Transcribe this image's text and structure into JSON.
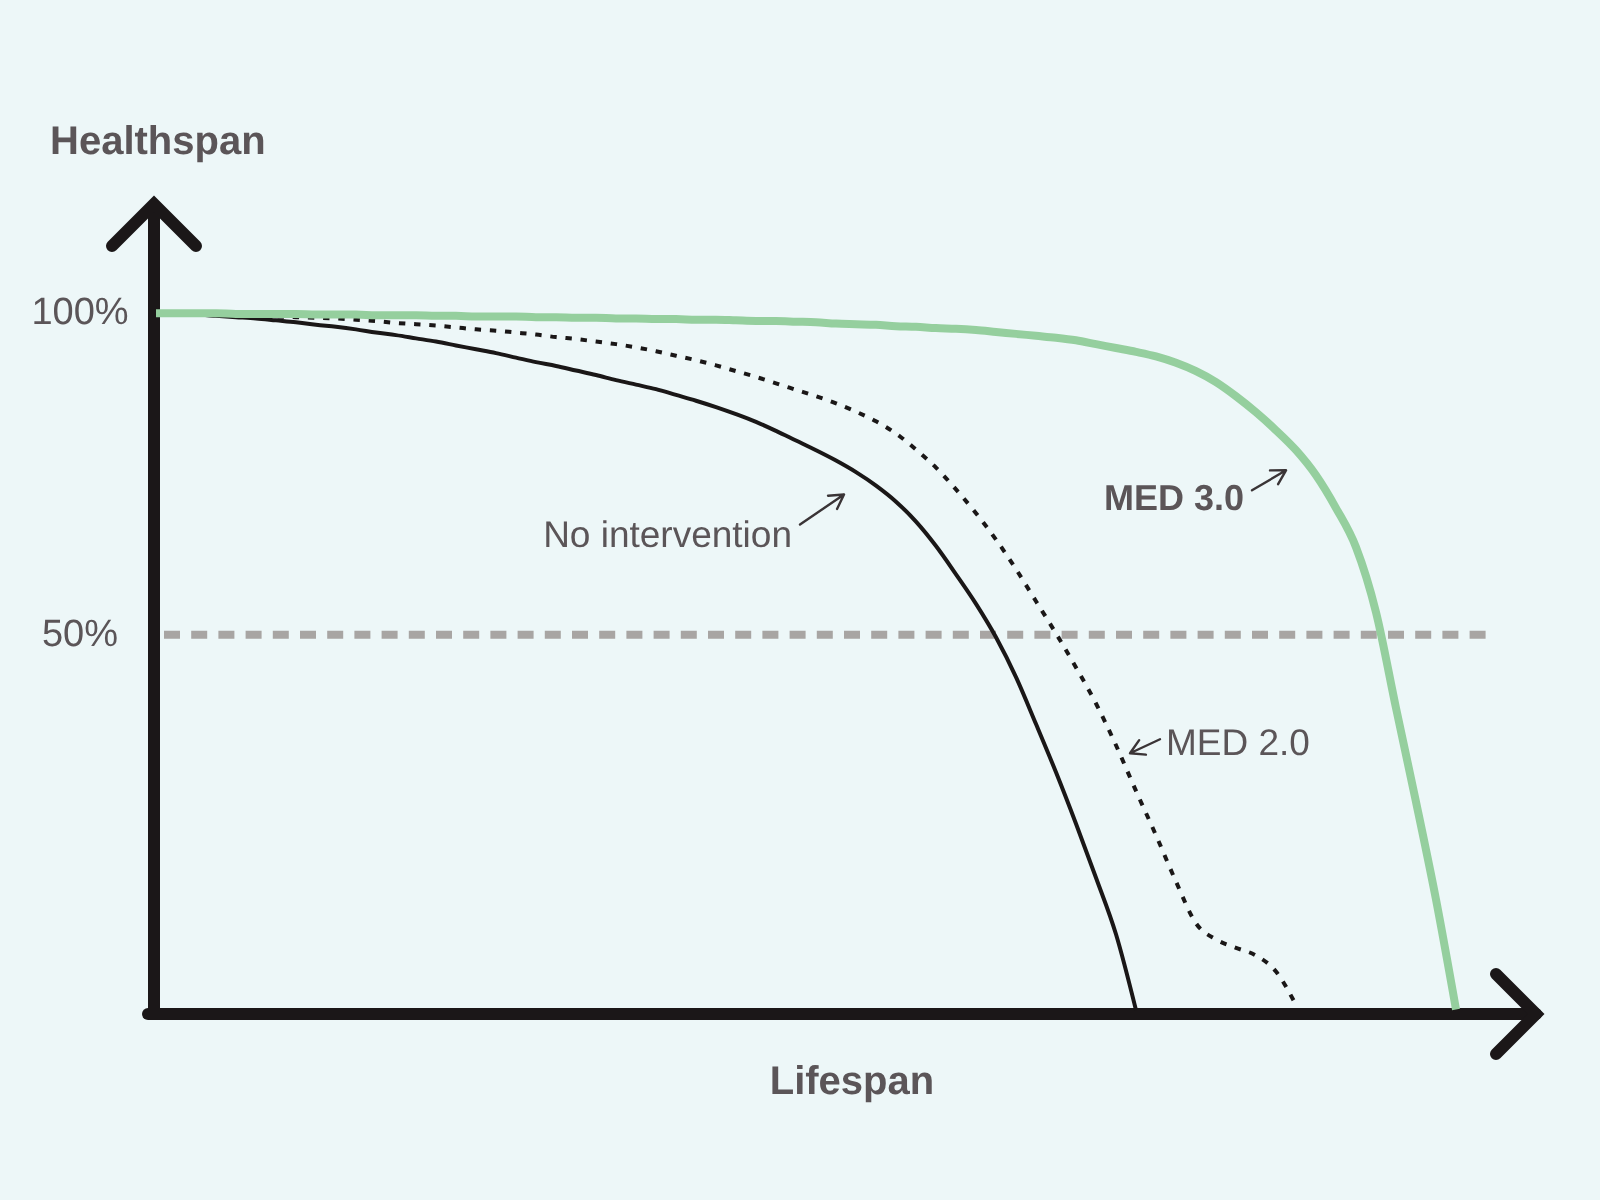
{
  "chart_data": {
    "type": "line",
    "xlabel": "Lifespan",
    "ylabel": "Healthspan",
    "categories": [
      null,
      null,
      null,
      null,
      null,
      null,
      null,
      null,
      null,
      null,
      null,
      null,
      null,
      null,
      null,
      null,
      null,
      null,
      null,
      null,
      null,
      null,
      null,
      null,
      null,
      null,
      null,
      null,
      null,
      null,
      null,
      null,
      null,
      null,
      null,
      null,
      null,
      null,
      null,
      null,
      null,
      null,
      null,
      null,
      null,
      null,
      null,
      null,
      null,
      null,
      null,
      null,
      null,
      null,
      null,
      null,
      null,
      null,
      null,
      null,
      null,
      null,
      null,
      null,
      null,
      null
    ],
    "ylim": [
      -9,
      117
    ],
    "yticks": [
      {
        "value": 100,
        "label": "100%"
      },
      {
        "value": 50,
        "label": "50%"
      }
    ],
    "tick_labels": "y",
    "ref_lines": [
      {
        "axis": "y",
        "value": 50,
        "color": "#a8a5a3",
        "line_style": "dashed"
      }
    ],
    "series": [
      {
        "name": "No intervention",
        "color": "#1a1717",
        "line_style": "solid",
        "values": [
          100,
          99.9,
          99.8,
          99.6,
          99.4,
          99.2,
          98.9,
          98.6,
          98.2,
          97.9,
          97.5,
          97.0,
          96.6,
          96.1,
          95.6,
          95.0,
          94.4,
          93.8,
          93.1,
          92.4,
          91.8,
          91.1,
          90.4,
          89.6,
          88.9,
          88.2,
          87.3,
          86.4,
          85.4,
          84.3,
          83.1,
          81.7,
          80.2,
          78.7,
          77.1,
          75.3,
          73.2,
          70.7,
          67.6,
          63.8,
          59.4,
          54.8,
          49.6,
          43.4,
          36.1,
          28.6,
          20.6,
          12.2,
          3.4,
          -8.4,
          null,
          null,
          null,
          null,
          null,
          null,
          null,
          null,
          null,
          null,
          null,
          null,
          null,
          null,
          null,
          null
        ]
      },
      {
        "name": "MED 2.0",
        "color": "#1a1717",
        "line_style": "dotted",
        "values": [
          100,
          99.9,
          99.8,
          99.8,
          99.7,
          99.6,
          99.5,
          99.4,
          99.3,
          99.2,
          99.0,
          98.8,
          98.5,
          98.3,
          98.1,
          97.8,
          97.5,
          97.3,
          97.0,
          96.7,
          96.3,
          96.0,
          95.6,
          95.2,
          94.7,
          94.1,
          93.4,
          92.7,
          91.9,
          91.0,
          90.1,
          89.1,
          88.1,
          87.1,
          86.0,
          84.7,
          83.2,
          81.3,
          78.8,
          76.0,
          72.6,
          68.9,
          64.8,
          60.2,
          55.2,
          50.2,
          44.9,
          39.3,
          32.8,
          25.7,
          18.8,
          11.6,
          5.1,
          2.6,
          1.3,
          0.1,
          -2.4,
          -7.6,
          null,
          null,
          null,
          null,
          null,
          null,
          null,
          null
        ]
      },
      {
        "name": "MED 3.0",
        "color": "#95cf9e",
        "line_style": "solid",
        "values": [
          100,
          100,
          100,
          100,
          99.9,
          99.9,
          99.9,
          99.9,
          99.8,
          99.8,
          99.8,
          99.7,
          99.7,
          99.7,
          99.6,
          99.6,
          99.5,
          99.5,
          99.5,
          99.4,
          99.4,
          99.3,
          99.3,
          99.2,
          99.2,
          99.1,
          99.1,
          99.0,
          99.0,
          98.9,
          98.8,
          98.8,
          98.7,
          98.6,
          98.4,
          98.3,
          98.2,
          98.0,
          97.9,
          97.7,
          97.6,
          97.4,
          97.1,
          96.8,
          96.5,
          96.2,
          95.8,
          95.2,
          94.6,
          94.0,
          93.3,
          92.3,
          91.0,
          89.3,
          87.1,
          84.6,
          81.8,
          78.7,
          74.8,
          69.7,
          63.6,
          53.5,
          38.6,
          24.0,
          8.8,
          -8.3
        ]
      }
    ]
  }
}
